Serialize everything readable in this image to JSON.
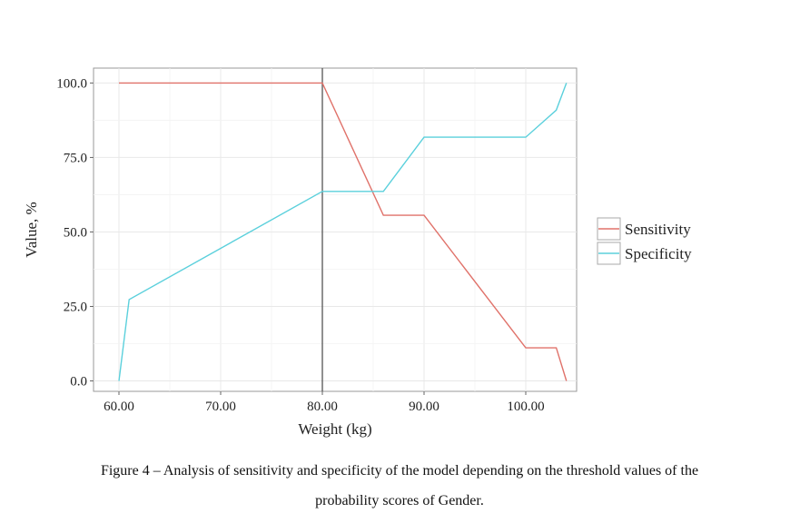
{
  "chart_data": {
    "type": "line",
    "xlabel": "Weight (kg)",
    "ylabel": "Value, %",
    "xlim": [
      57.5,
      105
    ],
    "ylim": [
      -3.5,
      105
    ],
    "grid": true,
    "legend_position": "right",
    "x_ticks": [
      "60.00",
      "70.00",
      "80.00",
      "90.00",
      "100.00"
    ],
    "x_tick_values": [
      60,
      70,
      80,
      90,
      100
    ],
    "y_ticks": [
      "0.0",
      "25.0",
      "50.0",
      "75.0",
      "100.0"
    ],
    "y_tick_values": [
      0,
      25,
      50,
      75,
      100
    ],
    "vline_x": 80,
    "series": [
      {
        "name": "Sensitivity",
        "color": "#e0726a",
        "x": [
          60,
          80,
          86,
          90,
          100,
          103,
          104
        ],
        "values": [
          100,
          100,
          55.6,
          55.6,
          11.1,
          11.1,
          0
        ]
      },
      {
        "name": "Specificity",
        "color": "#5bd0dc",
        "x": [
          60,
          61,
          80,
          86,
          90,
          100,
          103,
          104
        ],
        "values": [
          0,
          27.3,
          63.6,
          63.6,
          81.8,
          81.8,
          90.9,
          100
        ]
      }
    ]
  },
  "caption": {
    "line1": "Figure 4 – Analysis of sensitivity and specificity of the model depending on the threshold values of the",
    "line2": "probability scores of Gender."
  }
}
